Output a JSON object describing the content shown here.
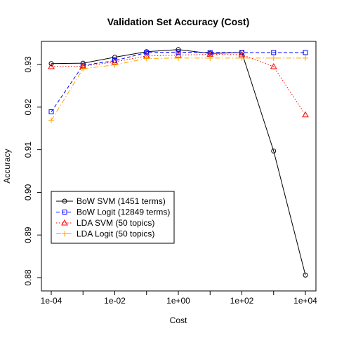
{
  "chart_data": {
    "type": "line",
    "title": "Validation Set Accuracy (Cost)",
    "xlabel": "Cost",
    "ylabel": "Accuracy",
    "x_scale": "log10",
    "x": [
      0.0001,
      0.001,
      0.01,
      0.1,
      1,
      10,
      100,
      1000,
      10000
    ],
    "x_ticks": [
      {
        "value": 0.0001,
        "label": "1e-04"
      },
      {
        "value": 0.01,
        "label": "1e-02"
      },
      {
        "value": 1,
        "label": "1e+00"
      },
      {
        "value": 100,
        "label": "1e+02"
      },
      {
        "value": 10000,
        "label": "1e+04"
      }
    ],
    "y_ticks": [
      0.88,
      0.89,
      0.9,
      0.91,
      0.92,
      0.93
    ],
    "ylim": [
      0.879,
      0.9355
    ],
    "grid": false,
    "legend_position": "bottom-left",
    "series": [
      {
        "name": "BoW SVM (1451 terms)",
        "color": "#000000",
        "dash": "",
        "marker": "circle",
        "values": [
          0.9302,
          0.9303,
          0.9317,
          0.933,
          0.9335,
          0.9326,
          0.9328,
          0.9097,
          0.8806
        ]
      },
      {
        "name": "BoW Logit (12849 terms)",
        "color": "#0000ff",
        "dash": "5,3",
        "marker": "square",
        "values": [
          0.9189,
          0.9298,
          0.9309,
          0.9328,
          0.9329,
          0.9328,
          0.9328,
          0.9328,
          0.9328
        ]
      },
      {
        "name": "LDA SVM (50 topics)",
        "color": "#ff0000",
        "dash": "1.5,2.5",
        "marker": "triangle",
        "values": [
          0.9295,
          0.9296,
          0.9306,
          0.932,
          0.9322,
          0.9324,
          0.9323,
          0.9295,
          0.9182
        ]
      },
      {
        "name": "LDA Logit (50 topics)",
        "color": "#ffa500",
        "dash": "7,3,1.5,3",
        "marker": "plus",
        "values": [
          0.9169,
          0.929,
          0.9299,
          0.9314,
          0.9315,
          0.9315,
          0.9315,
          0.9315,
          0.9315
        ]
      }
    ]
  }
}
